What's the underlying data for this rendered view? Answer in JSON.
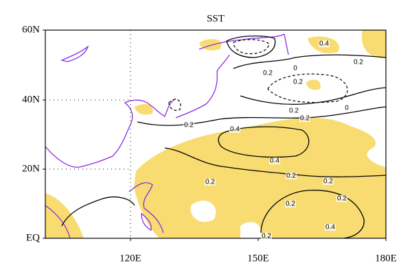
{
  "title": "SST",
  "lat_labels": [
    "60N",
    "40N",
    "20N",
    "EQ"
  ],
  "lon_labels": [
    "120E",
    "150E",
    "180E"
  ],
  "contour_labels": [
    "0.4",
    "0.2",
    "0.2",
    "0",
    "0.2",
    "0.2",
    "0",
    "0.2",
    "0.2",
    "0.4",
    "0.4",
    "0.2",
    "0.2",
    "0.2",
    "0.2",
    "0.2",
    "0.4",
    "0.2"
  ]
}
